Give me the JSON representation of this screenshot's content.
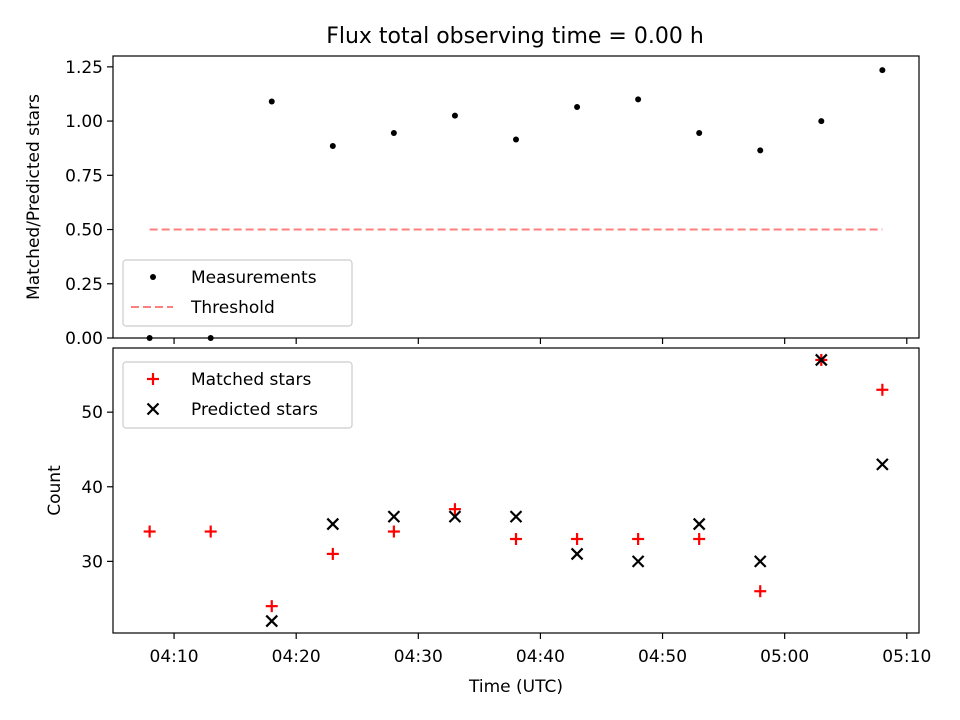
{
  "title": "Flux total observing time = 0.00 h",
  "chart_data": [
    {
      "type": "scatter",
      "title": "Flux total observing time = 0.00 h",
      "xlabel": "",
      "ylabel": "Matched/Predicted stars",
      "x": [
        "04:08",
        "04:13",
        "04:18",
        "04:23",
        "04:28",
        "04:33",
        "04:38",
        "04:43",
        "04:48",
        "04:53",
        "04:58",
        "05:03",
        "05:08"
      ],
      "xlim": [
        "04:05",
        "05:11"
      ],
      "xticks": [
        "04:10",
        "04:20",
        "04:30",
        "04:40",
        "04:50",
        "05:00",
        "05:10"
      ],
      "ylim": [
        0,
        1.3
      ],
      "yticks": [
        "0.00",
        "0.25",
        "0.50",
        "0.75",
        "1.00",
        "1.25"
      ],
      "series": [
        {
          "name": "Measurements",
          "marker": "dot",
          "color": "#000000",
          "values": [
            0.0,
            0.0,
            1.09,
            0.885,
            0.945,
            1.025,
            0.915,
            1.065,
            1.1,
            0.945,
            0.865,
            1.0,
            1.235
          ]
        },
        {
          "name": "Threshold",
          "marker": "dashed-line",
          "color": "#ff7f7f",
          "x": [
            "04:08",
            "05:08"
          ],
          "values": [
            0.5,
            0.5
          ]
        }
      ],
      "legend": "lower-left",
      "grid": false
    },
    {
      "type": "scatter",
      "xlabel": "Time (UTC)",
      "ylabel": "Count",
      "x": [
        "04:08",
        "04:13",
        "04:18",
        "04:23",
        "04:28",
        "04:33",
        "04:38",
        "04:43",
        "04:48",
        "04:53",
        "04:58",
        "05:03",
        "05:08"
      ],
      "xlim": [
        "04:05",
        "05:11"
      ],
      "xticks": [
        "04:10",
        "04:20",
        "04:30",
        "04:40",
        "04:50",
        "05:00",
        "05:10"
      ],
      "ylim": [
        20.4,
        58.6
      ],
      "yticks": [
        "30",
        "40",
        "50"
      ],
      "series": [
        {
          "name": "Matched stars",
          "marker": "plus",
          "color": "#ff0000",
          "values": [
            34,
            34,
            24,
            31,
            34,
            37,
            33,
            33,
            33,
            33,
            26,
            57,
            53
          ]
        },
        {
          "name": "Predicted stars",
          "marker": "x",
          "color": "#000000",
          "x": [
            "04:18",
            "04:23",
            "04:28",
            "04:33",
            "04:38",
            "04:43",
            "04:48",
            "04:53",
            "04:58",
            "05:03",
            "05:08"
          ],
          "values": [
            22,
            35,
            36,
            36,
            36,
            31,
            30,
            35,
            30,
            57,
            43
          ]
        }
      ],
      "legend": "top-left",
      "grid": false
    }
  ]
}
